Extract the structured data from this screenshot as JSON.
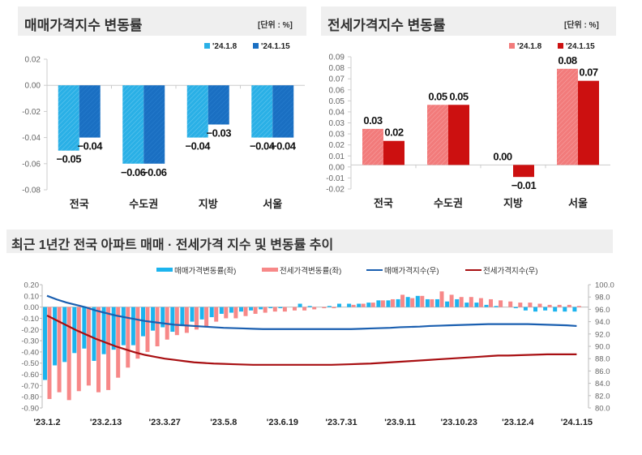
{
  "colors": {
    "sale_prev": "#2ab0e6",
    "sale_curr": "#1a6fc2",
    "jeonse_prev": "#f27b7b",
    "jeonse_curr": "#cc1010",
    "sale_rate_bar": "#1cb4ee",
    "jeonse_rate_bar": "#f78888",
    "sale_index_line": "#1a5fb0",
    "jeonse_index_line": "#a80f12"
  },
  "chart_data": [
    {
      "type": "bar",
      "title": "매매가격지수 변동률",
      "unit": "[단위 : %]",
      "categories": [
        "전국",
        "수도권",
        "지방",
        "서울"
      ],
      "series": [
        {
          "name": "'24.1.8",
          "values": [
            -0.05,
            -0.06,
            -0.04,
            -0.04
          ]
        },
        {
          "name": "'24.1.15",
          "values": [
            -0.04,
            -0.06,
            -0.03,
            -0.04
          ]
        }
      ],
      "ylim": [
        -0.08,
        0.02
      ],
      "yticks": [
        "0.02",
        "0.00",
        "-0.02",
        "-0.04",
        "-0.06",
        "-0.08"
      ],
      "legend": "top-right",
      "grid": false
    },
    {
      "type": "bar",
      "title": "전세가격지수 변동률",
      "unit": "[단위 : %]",
      "categories": [
        "전국",
        "수도권",
        "지방",
        "서울"
      ],
      "series": [
        {
          "name": "'24.1.8",
          "values": [
            0.03,
            0.05,
            0.0,
            0.08
          ]
        },
        {
          "name": "'24.1.15",
          "values": [
            0.02,
            0.05,
            -0.01,
            0.07
          ]
        }
      ],
      "ylim": [
        -0.02,
        0.09
      ],
      "yticks": [
        "0.09",
        "0.08",
        "0.07",
        "0.06",
        "0.05",
        "0.04",
        "0.03",
        "0.03",
        "0.02",
        "0.01",
        "0.00",
        "-0.01",
        "-0.02"
      ],
      "legend": "top-right",
      "grid": false
    },
    {
      "type": "bar+line",
      "title": "최근 1년간 전국 아파트 매매 · 전세가격 지수 및 변동률 추이",
      "xticks": [
        "'23.1.2",
        "'23.2.13",
        "'23.3.27",
        "'23.5.8",
        "'23.6.19",
        "'23.7.31",
        "'23.9.11",
        "'23.10.23",
        "'23.12.4",
        "'24.1.15"
      ],
      "ylim_left": [
        -0.9,
        0.2
      ],
      "yticks_left": [
        "0.20",
        "0.10",
        "0.00",
        "-0.10",
        "-0.20",
        "-0.30",
        "-0.40",
        "-0.50",
        "-0.60",
        "-0.70",
        "-0.80",
        "-0.90"
      ],
      "ylim_right": [
        80.0,
        100.0
      ],
      "yticks_right": [
        "100.0",
        "98.0",
        "96.0",
        "94.0",
        "92.0",
        "90.0",
        "88.0",
        "86.0",
        "84.0",
        "82.0",
        "80.0"
      ],
      "legend": "top-center",
      "grid": false,
      "series": [
        {
          "name": "매매가격변동률(좌)",
          "kind": "bar",
          "axis": "left",
          "values": [
            -0.65,
            -0.52,
            -0.49,
            -0.41,
            -0.37,
            -0.48,
            -0.42,
            -0.38,
            -0.34,
            -0.34,
            -0.26,
            -0.21,
            -0.18,
            -0.22,
            -0.17,
            -0.13,
            -0.11,
            -0.09,
            -0.06,
            -0.05,
            -0.04,
            -0.03,
            -0.02,
            -0.01,
            -0.01,
            0.0,
            0.03,
            0.01,
            0.0,
            0.01,
            0.03,
            0.03,
            0.03,
            0.04,
            0.06,
            0.06,
            0.07,
            0.09,
            0.1,
            0.07,
            0.07,
            0.05,
            0.07,
            0.04,
            0.04,
            0.02,
            0.01,
            0.0,
            -0.01,
            -0.03,
            -0.04,
            -0.03,
            -0.04,
            -0.04,
            -0.04
          ]
        },
        {
          "name": "전세가격변동률(좌)",
          "kind": "bar",
          "axis": "left",
          "values": [
            -0.82,
            -0.76,
            -0.83,
            -0.75,
            -0.7,
            -0.76,
            -0.74,
            -0.63,
            -0.54,
            -0.46,
            -0.4,
            -0.35,
            -0.29,
            -0.25,
            -0.23,
            -0.2,
            -0.18,
            -0.13,
            -0.1,
            -0.1,
            -0.08,
            -0.06,
            -0.05,
            -0.04,
            -0.04,
            -0.03,
            -0.03,
            -0.02,
            -0.01,
            -0.01,
            0.0,
            0.02,
            0.03,
            0.04,
            0.06,
            0.07,
            0.11,
            0.08,
            0.1,
            0.07,
            0.14,
            0.11,
            0.09,
            0.09,
            0.08,
            0.07,
            0.06,
            0.05,
            0.04,
            0.04,
            0.03,
            0.02,
            0.02,
            0.02,
            0.01
          ]
        },
        {
          "name": "매매가격지수(우)",
          "kind": "line",
          "axis": "right",
          "values": [
            98.2,
            97.6,
            97.1,
            96.7,
            96.3,
            95.8,
            95.4,
            95.0,
            94.7,
            94.4,
            94.1,
            93.9,
            93.7,
            93.5,
            93.4,
            93.3,
            93.2,
            93.1,
            93.0,
            92.95,
            92.9,
            92.85,
            92.8,
            92.8,
            92.8,
            92.8,
            92.8,
            92.8,
            92.8,
            92.8,
            92.8,
            92.8,
            92.85,
            92.9,
            92.95,
            93.0,
            93.1,
            93.15,
            93.2,
            93.3,
            93.35,
            93.4,
            93.45,
            93.5,
            93.55,
            93.6,
            93.6,
            93.6,
            93.6,
            93.6,
            93.55,
            93.5,
            93.45,
            93.4,
            93.3
          ]
        },
        {
          "name": "전세가격지수(우)",
          "kind": "line",
          "axis": "right",
          "values": [
            95.0,
            94.2,
            93.4,
            92.6,
            91.9,
            91.2,
            90.6,
            90.0,
            89.5,
            89.0,
            88.6,
            88.3,
            88.0,
            87.8,
            87.6,
            87.4,
            87.3,
            87.2,
            87.15,
            87.1,
            87.05,
            87.0,
            87.0,
            87.0,
            87.0,
            87.0,
            87.0,
            87.0,
            87.0,
            87.0,
            87.05,
            87.1,
            87.15,
            87.2,
            87.3,
            87.4,
            87.5,
            87.6,
            87.7,
            87.8,
            87.9,
            88.0,
            88.1,
            88.2,
            88.3,
            88.4,
            88.5,
            88.5,
            88.55,
            88.6,
            88.65,
            88.7,
            88.7,
            88.7,
            88.7
          ]
        }
      ]
    }
  ]
}
